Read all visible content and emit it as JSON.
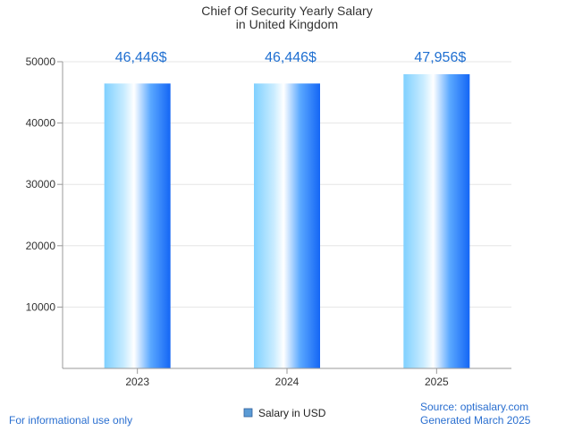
{
  "chart_data": {
    "type": "bar",
    "title_lines": [
      "Chief Of Security Yearly Salary",
      "in United Kingdom"
    ],
    "categories": [
      "2023",
      "2024",
      "2025"
    ],
    "values": [
      46446,
      46446,
      47956
    ],
    "data_labels": [
      "46,446$",
      "46,446$",
      "47,956$"
    ],
    "xlabel": "",
    "ylabel": "",
    "ylim": [
      0,
      50000
    ],
    "yticks": [
      10000,
      20000,
      30000,
      40000,
      50000
    ],
    "ytick_labels": [
      "10000",
      "20000",
      "30000",
      "40000",
      "50000"
    ],
    "grid": true,
    "legend": {
      "label": "Salary in USD",
      "position": "bottom-center"
    },
    "colors": {
      "bar_light": "#bfe9ff",
      "bar_mid": "#6fc4ff",
      "bar_dark": "#1466f5",
      "label": "#1f6fd1",
      "footer": "#2a6fd0",
      "grid": "#e6e6e6",
      "axis": "#999999"
    }
  },
  "footer": {
    "left": "For informational use only",
    "source": "Source: optisalary.com",
    "generated": "Generated March 2025"
  }
}
